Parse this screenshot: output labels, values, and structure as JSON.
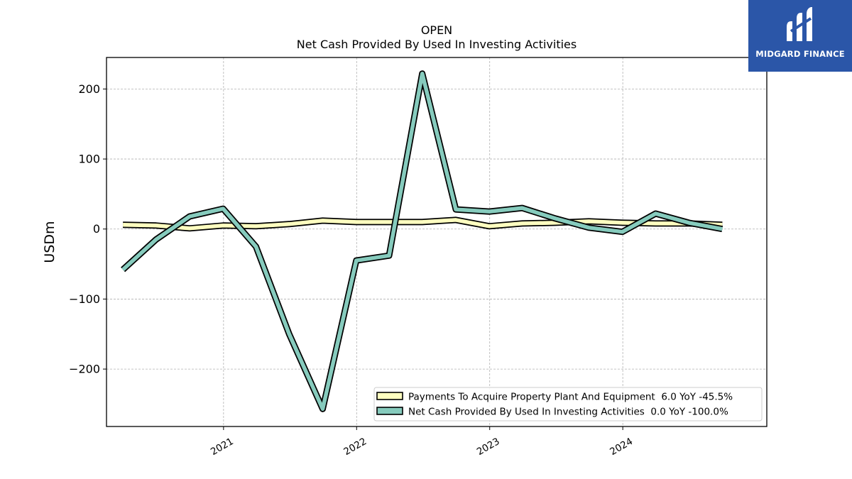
{
  "brand": {
    "name": "MIDGARD FINANCE",
    "bg_color": "#2b56a8"
  },
  "chart_data": {
    "type": "line",
    "title": "OPEN",
    "subtitle": "Net Cash Provided By Used In Investing Activities",
    "xlabel": "",
    "ylabel": "USDm",
    "ylim": [
      -282,
      245
    ],
    "yticks": [
      200,
      100,
      0,
      -100,
      -200
    ],
    "ytick_labels": [
      "200",
      "100",
      "0",
      "−100",
      "−200"
    ],
    "xlim": [
      "2020-02-15",
      "2025-01-30"
    ],
    "xticks": [
      "2021-01-01",
      "2022-01-01",
      "2023-01-01",
      "2024-01-01"
    ],
    "xtick_labels": [
      "2021",
      "2022",
      "2023",
      "2024"
    ],
    "grid": true,
    "legend_position": "lower-right",
    "x": [
      "2020-03-31",
      "2020-06-30",
      "2020-09-30",
      "2020-12-31",
      "2021-03-31",
      "2021-06-30",
      "2021-09-30",
      "2021-12-31",
      "2022-03-31",
      "2022-06-30",
      "2022-09-30",
      "2022-12-31",
      "2023-03-31",
      "2023-06-30",
      "2023-09-30",
      "2023-12-31",
      "2024-03-31",
      "2024-06-30",
      "2024-09-30"
    ],
    "series": [
      {
        "name": "Payments To Acquire Property Plant And Equipment",
        "legend_label": "Payments To Acquire Property Plant And Equipment  6.0 YoY -45.5%",
        "color": "#ffffc0",
        "values": [
          6,
          5,
          1,
          5,
          4,
          7,
          12,
          10,
          10,
          10,
          13,
          4,
          8,
          9,
          11,
          9,
          8,
          8,
          6
        ]
      },
      {
        "name": "Net Cash Provided By Used In Investing Activities",
        "legend_label": "Net Cash Provided By Used In Investing Activities  0.0 YoY -100.0%",
        "color": "#86cbbd",
        "values": [
          -58,
          -15,
          18,
          29,
          -25,
          -150,
          -257,
          -45,
          -38,
          222,
          28,
          25,
          30,
          15,
          2,
          -4,
          22,
          9,
          0
        ]
      }
    ]
  }
}
